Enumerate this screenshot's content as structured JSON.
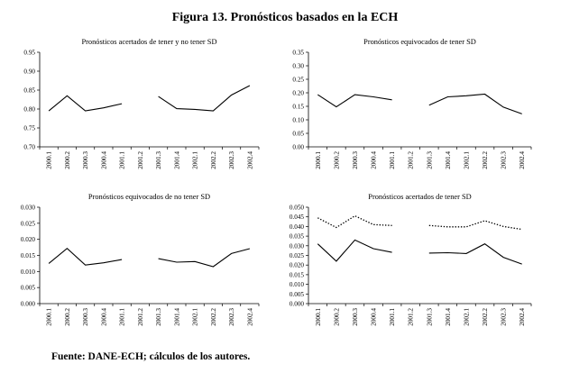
{
  "figure": {
    "title": "Figura 13. Pronósticos basados en la ECH",
    "source": "Fuente: DANE-ECH; cálculos de los autores."
  },
  "chart_data": [
    {
      "type": "line",
      "title": "Pronósticos acertados de tener y no tener SD",
      "categories": [
        "2000.1",
        "2000.2",
        "2000.3",
        "2000.4",
        "2001.1",
        "2001.2",
        "2001.3",
        "2001.4",
        "2002.1",
        "2002.2",
        "2002.3",
        "2002.4"
      ],
      "ylim": [
        0.7,
        0.95
      ],
      "yticks": [
        "0.70",
        "0.75",
        "0.80",
        "0.85",
        "0.90",
        "0.95"
      ],
      "series": [
        {
          "name": "",
          "style": "solid",
          "values": [
            0.795,
            0.835,
            0.795,
            0.803,
            0.814,
            null,
            0.833,
            0.801,
            0.799,
            0.795,
            0.837,
            0.862
          ]
        }
      ]
    },
    {
      "type": "line",
      "title": "Pronósticos equivocados de tener SD",
      "categories": [
        "2000.1",
        "2000.2",
        "2000.3",
        "2000.4",
        "2001.1",
        "2001.2",
        "2001.3",
        "2001.4",
        "2002.1",
        "2002.2",
        "2002.3",
        "2002.4"
      ],
      "ylim": [
        0.0,
        0.35
      ],
      "yticks": [
        "0.00",
        "0.05",
        "0.10",
        "0.15",
        "0.20",
        "0.25",
        "0.30",
        "0.35"
      ],
      "series": [
        {
          "name": "",
          "style": "solid",
          "values": [
            0.193,
            0.148,
            0.193,
            0.185,
            0.174,
            null,
            0.154,
            0.185,
            0.189,
            0.195,
            0.147,
            0.122
          ]
        }
      ]
    },
    {
      "type": "line",
      "title": "Pronósticos equivocados de no tener SD",
      "categories": [
        "2000.1",
        "2000.2",
        "2000.3",
        "2000.4",
        "2001.1",
        "2001.2",
        "2001.3",
        "2001.4",
        "2002.1",
        "2002.2",
        "2002.3",
        "2002.4"
      ],
      "ylim": [
        0.0,
        0.03
      ],
      "yticks": [
        "0.000",
        "0.005",
        "0.010",
        "0.015",
        "0.020",
        "0.025",
        "0.030"
      ],
      "series": [
        {
          "name": "",
          "style": "solid",
          "values": [
            0.0125,
            0.0172,
            0.012,
            0.0127,
            0.0137,
            null,
            0.014,
            0.0129,
            0.0131,
            0.0115,
            0.0156,
            0.0171
          ]
        }
      ]
    },
    {
      "type": "line",
      "title": "Pronósticos acertados de tener SD",
      "categories": [
        "2000.1",
        "2000.2",
        "2000.3",
        "2000.4",
        "2001.1",
        "2001.2",
        "2001.3",
        "2001.4",
        "2002.1",
        "2002.2",
        "2002.3",
        "2002.4"
      ],
      "ylim": [
        0.0,
        0.05
      ],
      "yticks": [
        "0.000",
        "0.005",
        "0.010",
        "0.015",
        "0.020",
        "0.025",
        "0.030",
        "0.035",
        "0.040",
        "0.045",
        "0.050"
      ],
      "series": [
        {
          "name": "",
          "style": "solid",
          "values": [
            0.031,
            0.022,
            0.033,
            0.0285,
            0.0266,
            null,
            0.0262,
            0.0264,
            0.026,
            0.031,
            0.024,
            0.0205
          ]
        },
        {
          "name": "",
          "style": "dotted",
          "values": [
            0.0445,
            0.0395,
            0.0455,
            0.041,
            0.0405,
            null,
            0.0405,
            0.0398,
            0.0398,
            0.043,
            0.04,
            0.0385
          ]
        }
      ]
    }
  ]
}
